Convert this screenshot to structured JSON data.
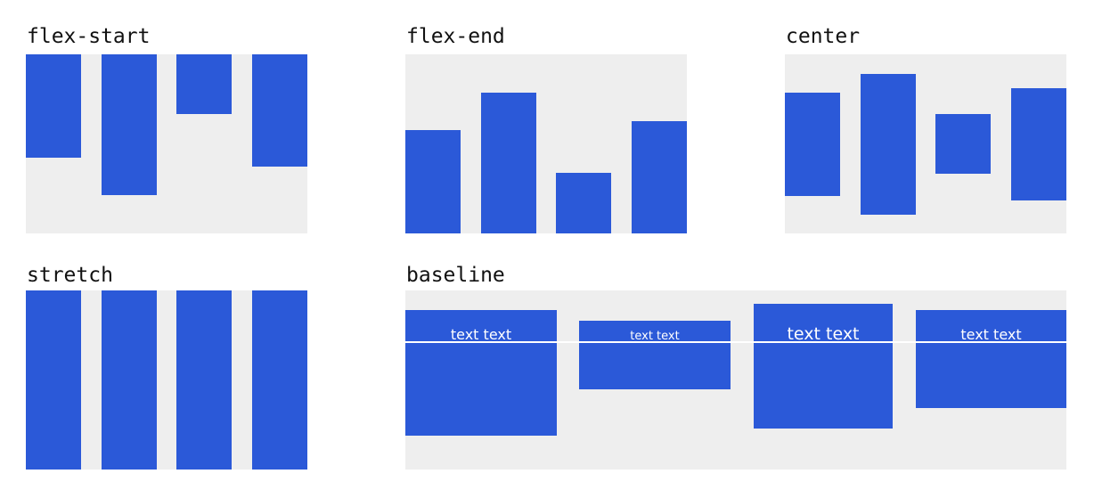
{
  "colors": {
    "panel": "#eeeeee",
    "box": "#2b59d8",
    "baseline_line": "#ffffff"
  },
  "panels": {
    "flex_start": {
      "label": "flex-start"
    },
    "flex_end": {
      "label": "flex-end"
    },
    "center": {
      "label": "center"
    },
    "stretch": {
      "label": "stretch"
    },
    "baseline": {
      "label": "baseline",
      "items": [
        {
          "text": "text text"
        },
        {
          "text": "text text"
        },
        {
          "text": "text text"
        },
        {
          "text": "text text"
        }
      ]
    }
  }
}
